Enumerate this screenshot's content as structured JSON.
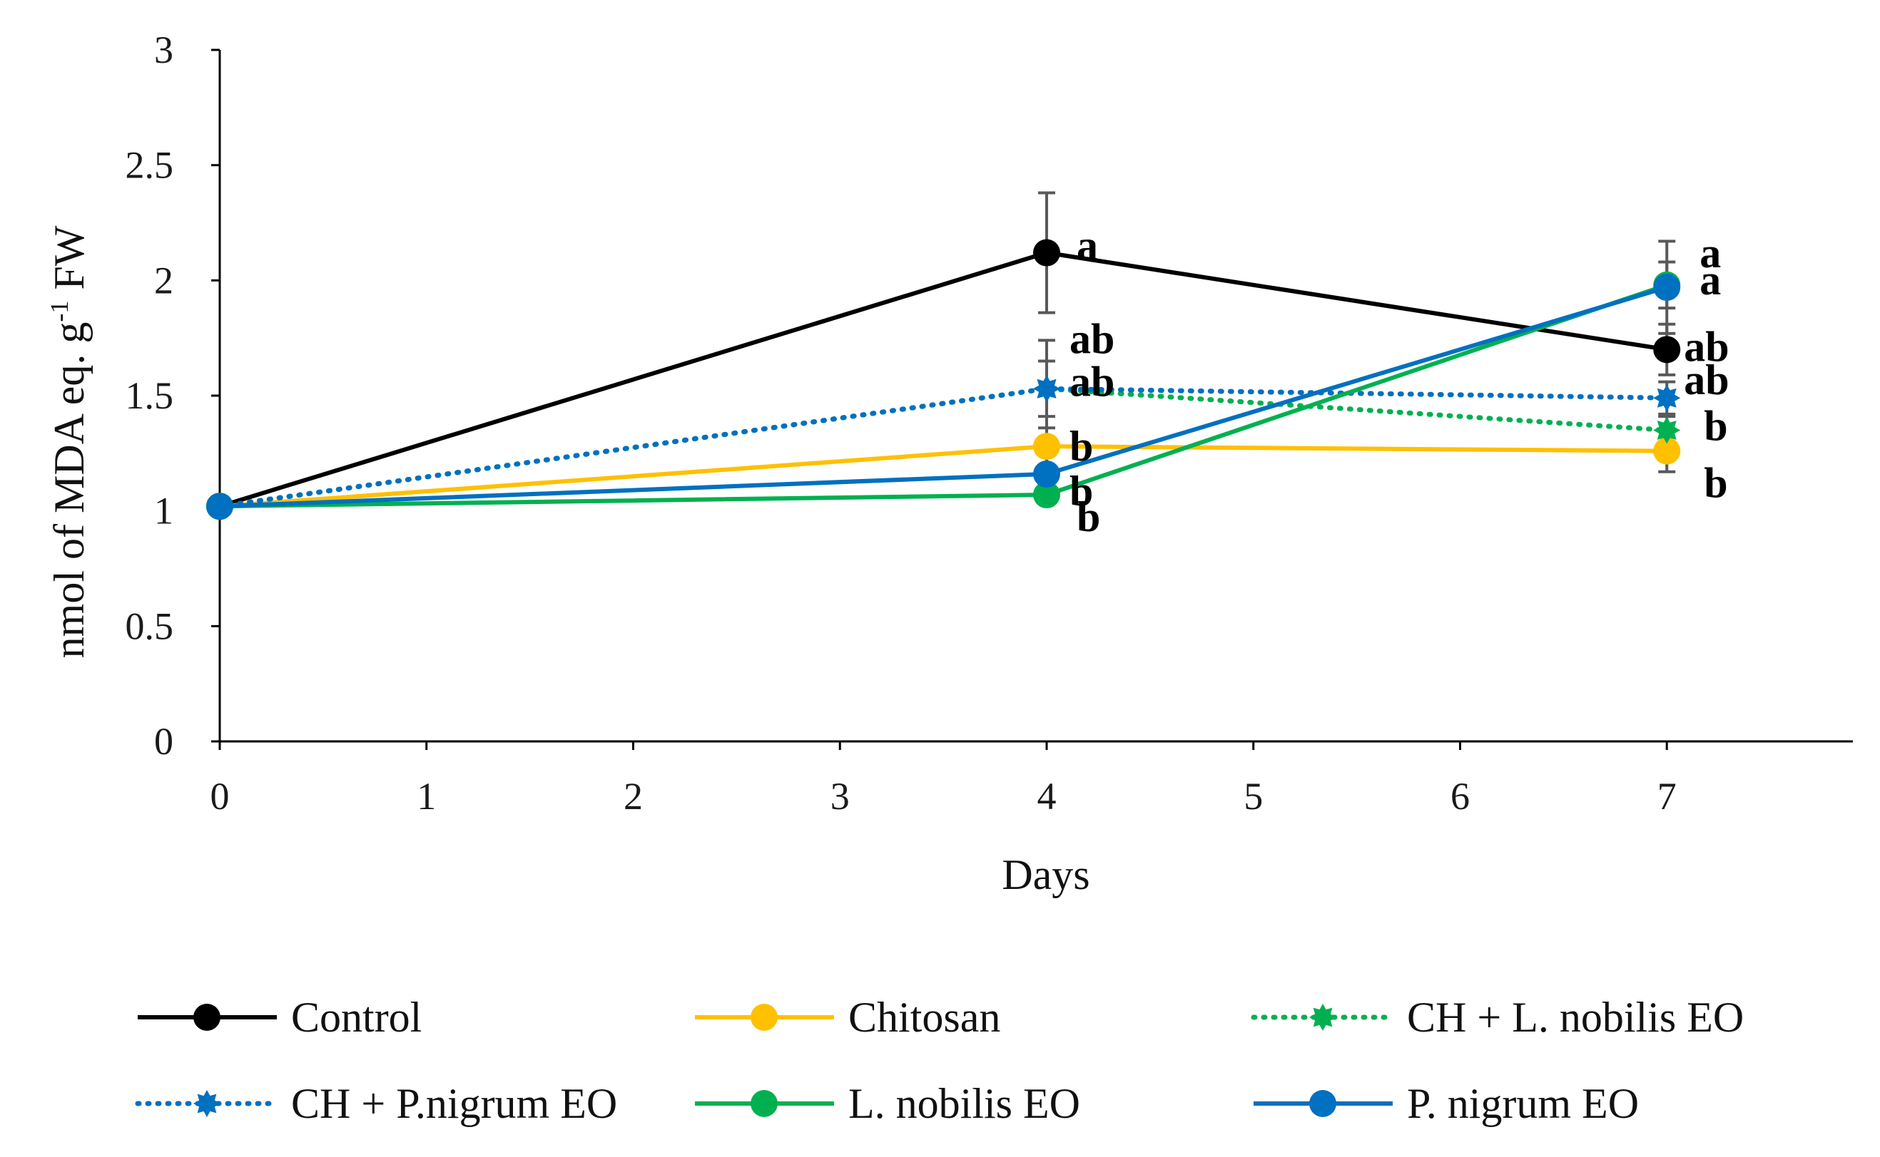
{
  "chart_data": {
    "type": "line",
    "title": "",
    "xlabel": "Days",
    "ylabel": "nmol of MDA eq. g",
    "ylabel_sup": "-1",
    "ylabel_suffix": " FW",
    "xlim": [
      0,
      7.9
    ],
    "ylim": [
      0,
      3
    ],
    "x_ticks": [
      0,
      1,
      2,
      3,
      4,
      5,
      6,
      7
    ],
    "y_ticks": [
      0,
      0.5,
      1,
      1.5,
      2,
      2.5,
      3
    ],
    "y_tick_labels": [
      "0",
      "0.5",
      "1",
      "1.5",
      "2",
      "2.5",
      "3"
    ],
    "grid": false,
    "legend_position": "bottom",
    "x": [
      0,
      4,
      7
    ],
    "series": [
      {
        "name": "Control",
        "color": "#000000",
        "style": "solid",
        "marker": "circle",
        "values": [
          1.02,
          2.12,
          1.7
        ],
        "errors": [
          0,
          0.26,
          0.11
        ],
        "sig": [
          null,
          "a",
          "ab"
        ]
      },
      {
        "name": "Chitosan",
        "color": "#FFC000",
        "style": "solid",
        "marker": "circle",
        "values": [
          1.02,
          1.28,
          1.26
        ],
        "errors": [
          0,
          0.08,
          0.09
        ],
        "sig": [
          null,
          "b",
          "b"
        ]
      },
      {
        "name": "CH + L. nobilis EO",
        "color": "#00B050",
        "style": "dotted",
        "marker": "star",
        "values": [
          1.02,
          1.53,
          1.35
        ],
        "errors": [
          0,
          0.12,
          0.06
        ],
        "sig": [
          null,
          "ab",
          "b"
        ]
      },
      {
        "name": "CH + P.nigrum EO",
        "color": "#0070C0",
        "style": "dotted",
        "marker": "star",
        "values": [
          1.02,
          1.53,
          1.49
        ],
        "errors": [
          0,
          0.21,
          0.07
        ],
        "sig": [
          null,
          "ab",
          "ab"
        ]
      },
      {
        "name": "L. nobilis EO",
        "color": "#00B050",
        "style": "solid",
        "marker": "circle",
        "values": [
          1.02,
          1.07,
          1.98
        ],
        "errors": [
          0,
          0.03,
          0.1
        ],
        "sig": [
          null,
          "b",
          "a"
        ]
      },
      {
        "name": "P. nigrum EO",
        "color": "#0070C0",
        "style": "solid",
        "marker": "circle",
        "values": [
          1.02,
          1.16,
          1.97
        ],
        "errors": [
          0,
          0.04,
          0.2
        ],
        "sig": [
          null,
          "b",
          "a"
        ]
      }
    ]
  }
}
